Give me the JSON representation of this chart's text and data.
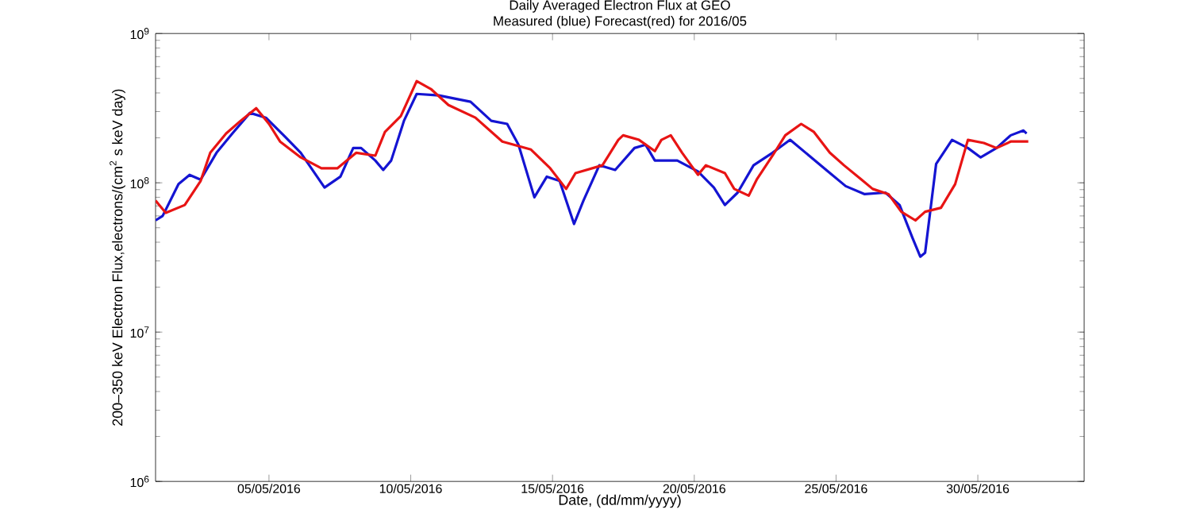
{
  "chart_data": {
    "type": "line",
    "title": "Daily Averaged Electron Flux at GEO",
    "subtitle": "Measured (blue) Forecast(red) for 2016/05",
    "xlabel": "Date, (dd/mm/yyyy)",
    "ylabel": "200–350 keV Electron Flux,electrons/(cm$^{2}$ s keV day)",
    "log": "y",
    "xlim": [
      "2016-05-01T00:00",
      "2016-06-02T18:00"
    ],
    "ylim": [
      1000000,
      1000000000
    ],
    "xticks": [
      {
        "value": "2016-05-05",
        "label": "05/05/2016"
      },
      {
        "value": "2016-05-10",
        "label": "10/05/2016"
      },
      {
        "value": "2016-05-15",
        "label": "15/05/2016"
      },
      {
        "value": "2016-05-20",
        "label": "20/05/2016"
      },
      {
        "value": "2016-05-25",
        "label": "25/05/2016"
      },
      {
        "value": "2016-05-30",
        "label": "30/05/2016"
      }
    ],
    "yticks": [
      {
        "value": 1000000,
        "label": "10$^{6}$"
      },
      {
        "value": 10000000,
        "label": "10$^{7}$"
      },
      {
        "value": 100000000,
        "label": "10$^{8}$"
      },
      {
        "value": 1000000000,
        "label": "10$^{9}$"
      }
    ],
    "series": [
      {
        "color": "#1414d2",
        "x": [
          "2016-05-01T00:00",
          "2016-05-01T06:00",
          "2016-05-01T19:26",
          "2016-05-02T04:48",
          "2016-05-02T14:10",
          "2016-05-03T03:36",
          "2016-05-03T17:02",
          "2016-05-04T07:55",
          "2016-05-04T21:22",
          "2016-05-05T13:26",
          "2016-05-06T02:53",
          "2016-05-06T23:02",
          "2016-05-07T12:29",
          "2016-05-07T23:17",
          "2016-05-08T06:00",
          "2016-05-08T18:00",
          "2016-05-09T00:43",
          "2016-05-09T07:26",
          "2016-05-09T18:14",
          "2016-05-10T05:02",
          "2016-05-10T23:46",
          "2016-05-12T02:38",
          "2016-05-12T20:10",
          "2016-05-13T09:36",
          "2016-05-13T19:12",
          "2016-05-14T08:38",
          "2016-05-14T19:12",
          "2016-05-15T06:00",
          "2016-05-15T18:14",
          "2016-05-16T02:10",
          "2016-05-16T15:36",
          "2016-05-17T05:02",
          "2016-05-17T21:22",
          "2016-05-18T06:43",
          "2016-05-18T14:38",
          "2016-05-19T09:36",
          "2016-05-20T03:07",
          "2016-05-20T16:34",
          "2016-05-21T01:55",
          "2016-05-21T12:43",
          "2016-05-22T02:10",
          "2016-05-22T18:14",
          "2016-05-23T09:07",
          "2016-05-24T01:12",
          "2016-05-24T17:17",
          "2016-05-25T08:10",
          "2016-05-26T00:14",
          "2016-05-26T17:46",
          "2016-05-27T05:46",
          "2016-05-27T16:34",
          "2016-05-27T23:17",
          "2016-05-28T03:22",
          "2016-05-28T12:43",
          "2016-05-29T02:10",
          "2016-05-29T15:36",
          "2016-05-30T02:24",
          "2016-05-30T15:50",
          "2016-05-31T03:50",
          "2016-05-31T14:38",
          "2016-05-31T17:17"
        ],
        "values": [
          56000000,
          60000000,
          98000000,
          113000000,
          105000000,
          159000000,
          214000000,
          294000000,
          273000000,
          204000000,
          159000000,
          93000000,
          110000000,
          171000000,
          171000000,
          141000000,
          122000000,
          141000000,
          260000000,
          394000000,
          385000000,
          349000000,
          260000000,
          248000000,
          180000000,
          80000000,
          110000000,
          103000000,
          53000000,
          76000000,
          131000000,
          122000000,
          171000000,
          180000000,
          141000000,
          141000000,
          119000000,
          93000000,
          71000000,
          86000000,
          131000000,
          159000000,
          194000000,
          152000000,
          119000000,
          95000000,
          84000000,
          86000000,
          71000000,
          43000000,
          32000000,
          34000000,
          134000000,
          194000000,
          171000000,
          148000000,
          171000000,
          208000000,
          224000000,
          214000000
        ]
      },
      {
        "color": "#e81414",
        "x": [
          "2016-05-01T00:00",
          "2016-05-01T08:38",
          "2016-05-02T00:43",
          "2016-05-02T14:10",
          "2016-05-02T22:19",
          "2016-05-03T11:46",
          "2016-05-04T00:00",
          "2016-05-04T13:12",
          "2016-05-05T00:00",
          "2016-05-05T09:22",
          "2016-05-06T02:53",
          "2016-05-06T20:24",
          "2016-05-07T09:50",
          "2016-05-08T01:55",
          "2016-05-08T18:00",
          "2016-05-09T02:10",
          "2016-05-09T15:36",
          "2016-05-10T05:02",
          "2016-05-10T17:02",
          "2016-05-11T07:55",
          "2016-05-12T06:43",
          "2016-05-13T05:31",
          "2016-05-14T05:46",
          "2016-05-14T22:05",
          "2016-05-15T11:31",
          "2016-05-15T19:26",
          "2016-05-16T18:14",
          "2016-05-17T07:41",
          "2016-05-17T11:46",
          "2016-05-18T01:12",
          "2016-05-18T14:38",
          "2016-05-18T20:10",
          "2016-05-19T04:05",
          "2016-05-19T13:41",
          "2016-05-20T03:07",
          "2016-05-20T09:50",
          "2016-05-21T01:55",
          "2016-05-21T09:50",
          "2016-05-21T22:05",
          "2016-05-22T04:48",
          "2016-05-22T18:14",
          "2016-05-23T05:02",
          "2016-05-23T18:29",
          "2016-05-24T05:17",
          "2016-05-24T18:43",
          "2016-05-25T06:43",
          "2016-05-25T21:36",
          "2016-05-26T06:58",
          "2016-05-26T20:24",
          "2016-05-27T07:12",
          "2016-05-27T19:12",
          "2016-05-28T03:22",
          "2016-05-28T16:48",
          "2016-05-29T04:48",
          "2016-05-29T15:36",
          "2016-05-30T05:02",
          "2016-05-30T15:50",
          "2016-05-31T03:50",
          "2016-05-31T18:43"
        ],
        "values": [
          76000000,
          63000000,
          71000000,
          103000000,
          159000000,
          214000000,
          260000000,
          316000000,
          248000000,
          189000000,
          148000000,
          125000000,
          125000000,
          159000000,
          152000000,
          219000000,
          280000000,
          480000000,
          425000000,
          332000000,
          273000000,
          189000000,
          167000000,
          125000000,
          91000000,
          116000000,
          131000000,
          194000000,
          208000000,
          194000000,
          163000000,
          194000000,
          208000000,
          159000000,
          113000000,
          131000000,
          116000000,
          91000000,
          82000000,
          105000000,
          152000000,
          208000000,
          248000000,
          219000000,
          159000000,
          131000000,
          105000000,
          91000000,
          84000000,
          64000000,
          56000000,
          64000000,
          68000000,
          98000000,
          194000000,
          185000000,
          171000000,
          189000000,
          189000000
        ]
      }
    ]
  }
}
